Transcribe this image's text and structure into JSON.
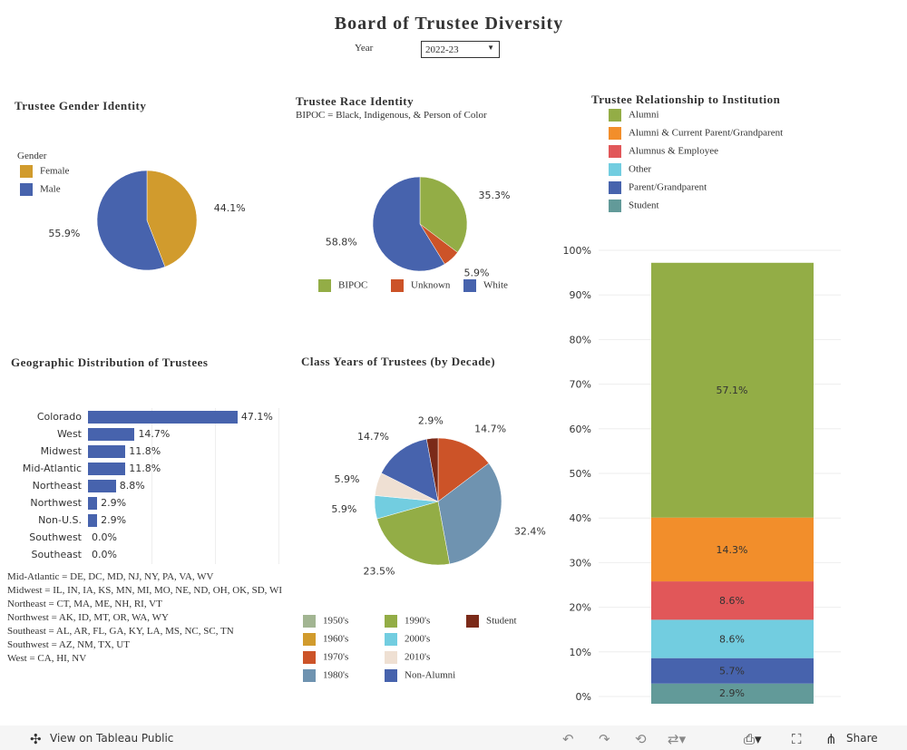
{
  "title": "Board of Trustee Diversity",
  "year_filter": {
    "label": "Year",
    "value": "2022-23"
  },
  "gender": {
    "title": "Trustee Gender Identity",
    "legend_title": "Gender",
    "slices": [
      {
        "name": "Female",
        "value": 44.1,
        "label": "44.1%",
        "color": "#d19b2d"
      },
      {
        "name": "Male",
        "value": 55.9,
        "label": "55.9%",
        "color": "#4763ad"
      }
    ]
  },
  "race": {
    "title": "Trustee Race Identity",
    "subtitle": "BIPOC = Black, Indigenous, & Person of Color",
    "slices": [
      {
        "name": "BIPOC",
        "value": 35.3,
        "label": "35.3%",
        "color": "#93ad46"
      },
      {
        "name": "Unknown",
        "value": 5.9,
        "label": "5.9%",
        "color": "#cc5328"
      },
      {
        "name": "White",
        "value": 58.8,
        "label": "58.8%",
        "color": "#4763ad"
      }
    ]
  },
  "geo": {
    "title": "Geographic Distribution of Trustees",
    "color": "#4763ad",
    "rows": [
      {
        "name": "Colorado",
        "value": 47.1,
        "label": "47.1%"
      },
      {
        "name": "West",
        "value": 14.7,
        "label": "14.7%"
      },
      {
        "name": "Midwest",
        "value": 11.8,
        "label": "11.8%"
      },
      {
        "name": "Mid-Atlantic",
        "value": 11.8,
        "label": "11.8%"
      },
      {
        "name": "Northeast",
        "value": 8.8,
        "label": "8.8%"
      },
      {
        "name": "Northwest",
        "value": 2.9,
        "label": "2.9%"
      },
      {
        "name": "Non-U.S.",
        "value": 2.9,
        "label": "2.9%"
      },
      {
        "name": "Southwest",
        "value": 0.0,
        "label": "0.0%"
      },
      {
        "name": "Southeast",
        "value": 0.0,
        "label": "0.0%"
      }
    ],
    "notes": [
      "Mid-Atlantic = DE, DC, MD, NJ, NY, PA, VA, WV",
      "Midwest = IL, IN, IA, KS, MN, MI, MO, NE, ND, OH, OK, SD, WI",
      "Northeast = CT, MA, ME, NH, RI, VT",
      "Northwest = AK, ID, MT, OR, WA, WY",
      "Southeast = AL, AR, FL, GA, KY, LA, MS, NC, SC, TN",
      "Southwest = AZ, NM, TX, UT",
      "West = CA, HI, NV"
    ]
  },
  "class_years": {
    "title": "Class Years of Trustees (by Decade)",
    "slices": [
      {
        "name": "1970's",
        "value": 14.7,
        "label": "14.7%",
        "color": "#cc5328"
      },
      {
        "name": "1980's",
        "value": 32.4,
        "label": "32.4%",
        "color": "#6f93b0"
      },
      {
        "name": "1990's",
        "value": 23.5,
        "label": "23.5%",
        "color": "#93ad46"
      },
      {
        "name": "2000's",
        "value": 5.9,
        "label": "5.9%",
        "color": "#72cde0"
      },
      {
        "name": "2010's",
        "value": 5.9,
        "label": "5.9%",
        "color": "#efe0d3"
      },
      {
        "name": "Non-Alumni",
        "value": 14.7,
        "label": "14.7%",
        "color": "#4763ad"
      },
      {
        "name": "Student",
        "value": 2.9,
        "label": "2.9%",
        "color": "#7b2a19"
      }
    ],
    "legend": [
      {
        "name": "1950's",
        "color": "#a2b592"
      },
      {
        "name": "1960's",
        "color": "#d19b2d"
      },
      {
        "name": "1970's",
        "color": "#cc5328"
      },
      {
        "name": "1980's",
        "color": "#6f93b0"
      },
      {
        "name": "1990's",
        "color": "#93ad46"
      },
      {
        "name": "2000's",
        "color": "#72cde0"
      },
      {
        "name": "2010's",
        "color": "#efe0d3"
      },
      {
        "name": "Non-Alumni",
        "color": "#4763ad"
      },
      {
        "name": "Student",
        "color": "#7b2a19"
      }
    ]
  },
  "relationship": {
    "title": "Trustee Relationship to Institution",
    "legend": [
      {
        "name": "Alumni",
        "color": "#93ad46"
      },
      {
        "name": "Alumni & Current Parent/Grandparent",
        "color": "#f28e2b"
      },
      {
        "name": "Alumnus & Employee",
        "color": "#e15759"
      },
      {
        "name": "Other",
        "color": "#72cde0"
      },
      {
        "name": "Parent/Grandparent",
        "color": "#4763ad"
      },
      {
        "name": "Student",
        "color": "#629a99"
      }
    ],
    "stack_bottom_up": [
      {
        "name": "Student",
        "value": 2.9,
        "label": "2.9%",
        "color": "#629a99"
      },
      {
        "name": "Parent/Grandparent",
        "value": 5.7,
        "label": "5.7%",
        "color": "#4763ad"
      },
      {
        "name": "Other",
        "value": 8.6,
        "label": "8.6%",
        "color": "#72cde0"
      },
      {
        "name": "Alumnus & Employee",
        "value": 8.6,
        "label": "8.6%",
        "color": "#e15759"
      },
      {
        "name": "Alumni & Current Parent/Grandparent",
        "value": 14.3,
        "label": "14.3%",
        "color": "#f28e2b"
      },
      {
        "name": "Alumni",
        "value": 57.1,
        "label": "57.1%",
        "color": "#93ad46"
      }
    ],
    "yticks": [
      "0%",
      "10%",
      "20%",
      "30%",
      "40%",
      "50%",
      "60%",
      "70%",
      "80%",
      "90%",
      "100%"
    ]
  },
  "toolbar": {
    "view_label": "View on Tableau Public",
    "share_label": "Share"
  }
}
